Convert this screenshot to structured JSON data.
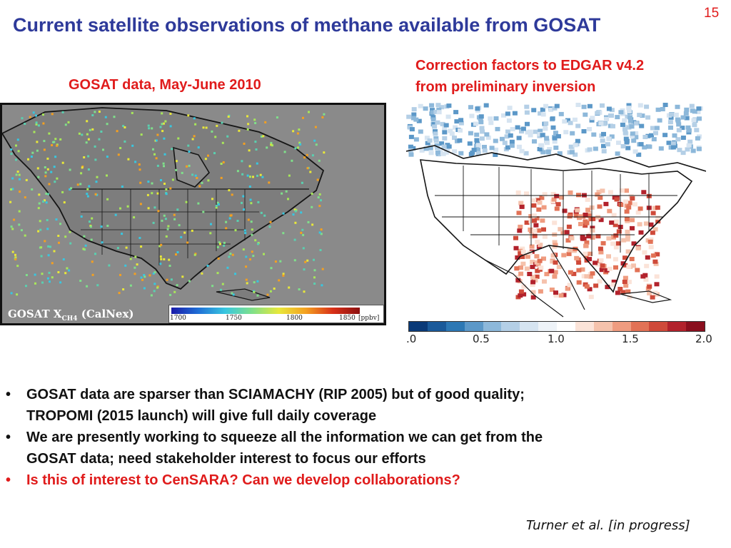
{
  "slide": {
    "title": "Current satellite observations of methane available from GOSAT",
    "number": "15"
  },
  "left_panel": {
    "caption": "GOSAT data, May-June 2010",
    "map_label_main": "GOSAT X",
    "map_label_sub": "CH4",
    "map_label_suffix": "(CalNex)",
    "colorbar_ticks": [
      "1700",
      "1750",
      "1800",
      "1850"
    ],
    "colorbar_unit": "[ppbv]",
    "colors": {
      "ocean": "#8a8a8a",
      "land": "#7c7c7c"
    }
  },
  "right_panel": {
    "caption_lines": [
      "Correction factors to EDGAR v4.2",
      "from preliminary inversion"
    ],
    "colorbar_ticks": [
      ".0",
      "0.5",
      "1.0",
      "1.5",
      "2.0"
    ],
    "colorbar_colors": [
      "#0a3a78",
      "#1a5a9a",
      "#2d78b4",
      "#5c98c8",
      "#8db8da",
      "#b4cfe6",
      "#d6e4f1",
      "#eef3f8",
      "#ffffff",
      "#fbe3d8",
      "#f5c2ac",
      "#ef9c80",
      "#e27256",
      "#cf4a3a",
      "#b2222c",
      "#8a0f1e"
    ]
  },
  "bullets": [
    {
      "lines": [
        "GOSAT data are sparser than SCIAMACHY (RIP 2005) but of good quality;",
        "TROPOMI (2015 launch) will give full daily coverage"
      ],
      "highlight": false
    },
    {
      "lines": [
        "We are presently working to squeeze all the information we can get from the",
        "GOSAT data; need stakeholder interest to focus our efforts"
      ],
      "highlight": false
    },
    {
      "lines": [
        "Is this of interest to CenSARA? Can we develop collaborations?"
      ],
      "highlight": true
    }
  ],
  "bullet_symbol": "•",
  "citation": "Turner et al. [in progress]"
}
